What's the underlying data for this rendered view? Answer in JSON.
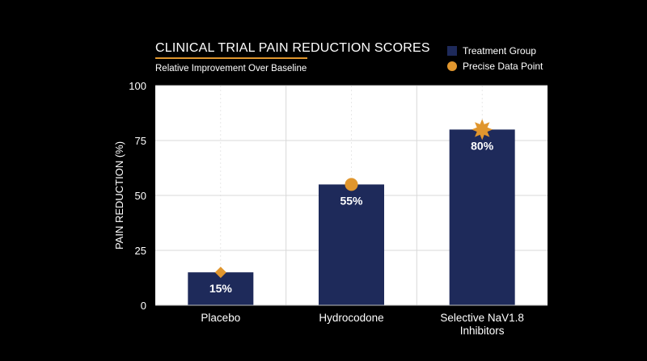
{
  "colors": {
    "background": "#000000",
    "plot_background": "#ffffff",
    "bar": "#1e2a5a",
    "marker": "#e0962e",
    "grid": "#d9d9d9",
    "title_underline": "#e0962e"
  },
  "legend": {
    "items": [
      {
        "label": "Treatment Group",
        "shape": "square",
        "color": "#1e2a5a"
      },
      {
        "label": "Precise Data Point",
        "shape": "circle",
        "color": "#e0962e"
      }
    ],
    "placement": "top-right"
  },
  "chart_data": {
    "type": "bar",
    "title": "CLINICAL TRIAL PAIN REDUCTION SCORES",
    "subtitle": "Relative Improvement Over Baseline",
    "xlabel": "",
    "ylabel": "PAIN REDUCTION (%)",
    "ylim": [
      0,
      100
    ],
    "yticks": [
      0,
      25,
      50,
      75,
      100
    ],
    "grid": true,
    "categories": [
      "Placebo",
      "Hydrocodone",
      "Selective NaV1.8 Inhibitors"
    ],
    "category_lines": [
      [
        "Placebo"
      ],
      [
        "Hydrocodone"
      ],
      [
        "Selective NaV1.8",
        "Inhibitors"
      ]
    ],
    "values": [
      15,
      55,
      80
    ],
    "data_labels": [
      "15%",
      "55%",
      "80%"
    ],
    "markers": [
      "diamond",
      "circle",
      "star"
    ]
  }
}
